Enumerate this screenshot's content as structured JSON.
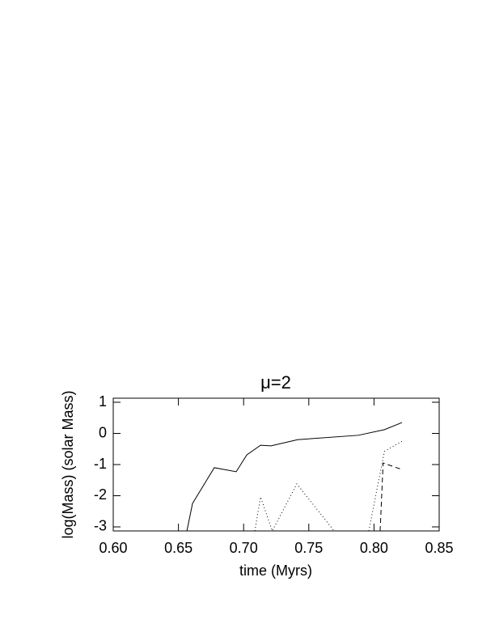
{
  "chart_data": {
    "type": "line",
    "title": "μ=2",
    "x_label": "time (Myrs)",
    "y_label": "log(Mass) (solar Mass)",
    "xlim": [
      0.6,
      0.85
    ],
    "xticks": [
      {
        "value": 0.6,
        "label": "0.60"
      },
      {
        "value": 0.65,
        "label": "0.65"
      },
      {
        "value": 0.7,
        "label": "0.70"
      },
      {
        "value": 0.75,
        "label": "0.75"
      },
      {
        "value": 0.8,
        "label": "0.80"
      },
      {
        "value": 0.85,
        "label": "0.85"
      }
    ],
    "ylim": [
      -3.13,
      1.13
    ],
    "yticks": [
      1,
      0,
      -1,
      -2,
      -3
    ],
    "grid": false,
    "series": [
      {
        "color": "#000000",
        "linestyle": "solid",
        "x": [
          0.6565,
          0.6608,
          0.6775,
          0.6943,
          0.7024,
          0.713,
          0.721,
          0.7414,
          0.788,
          0.808,
          0.8215
        ],
        "values": [
          -3.13,
          -2.25,
          -1.1,
          -1.23,
          -0.69,
          -0.38,
          -0.4,
          -0.2,
          -0.06,
          0.12,
          0.35
        ]
      },
      {
        "color": "#000000",
        "linestyle": "dotted",
        "x": [
          0.7086,
          0.713,
          0.722,
          0.7408,
          0.7694,
          null,
          0.796,
          0.808,
          0.8215
        ],
        "values": [
          -3.13,
          -2.04,
          -3.13,
          -1.62,
          -3.13,
          null,
          -3.13,
          -0.58,
          -0.25
        ]
      },
      {
        "color": "#000000",
        "linestyle": "dashed",
        "x": [
          0.8047,
          0.807,
          0.8215
        ],
        "values": [
          -3.13,
          -0.95,
          -1.16
        ]
      }
    ]
  }
}
